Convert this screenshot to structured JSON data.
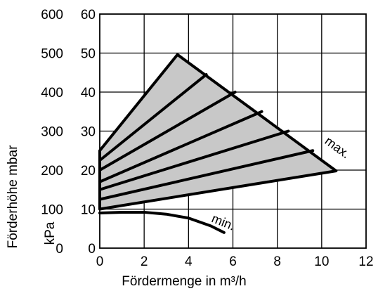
{
  "chart_data": {
    "type": "line",
    "xlabel": "Fördermenge in m³/h",
    "ylabel_outer": "Förderhöhe mbar",
    "ylabel_inner": "kPa",
    "xlim": [
      0,
      12
    ],
    "ylim_kpa": [
      0,
      60
    ],
    "ylim_mbar": [
      0,
      600
    ],
    "x_ticks": [
      "0",
      "2",
      "4",
      "6",
      "8",
      "10",
      "12"
    ],
    "y_ticks_mbar": [
      "0",
      "100",
      "200",
      "300",
      "400",
      "500",
      "600"
    ],
    "y_ticks_kpa": [
      "0",
      "10",
      "20",
      "30",
      "40",
      "50",
      "60"
    ],
    "grid": true,
    "region": {
      "name": "",
      "x": [
        0,
        3.5,
        10.65,
        0
      ],
      "y": [
        25,
        49.6,
        19.8,
        10
      ]
    },
    "series": [
      {
        "name": "",
        "x": [
          0,
          4.8
        ],
        "y": [
          22.5,
          44.5
        ]
      },
      {
        "name": "",
        "x": [
          0,
          6.1
        ],
        "y": [
          20,
          40
        ]
      },
      {
        "name": "",
        "x": [
          0,
          7.3
        ],
        "y": [
          17,
          35
        ]
      },
      {
        "name": "",
        "x": [
          0,
          8.5
        ],
        "y": [
          15,
          30
        ]
      },
      {
        "name": "",
        "x": [
          0,
          9.6
        ],
        "y": [
          12.5,
          25
        ]
      },
      {
        "name": "",
        "x": [
          0,
          1,
          2,
          3,
          4,
          5,
          5.6
        ],
        "y": [
          9,
          9.2,
          9.2,
          8.7,
          7.7,
          5.7,
          4
        ]
      }
    ],
    "annotations": [
      {
        "text": "max.",
        "x": 10.1,
        "y": 27
      },
      {
        "text": "min.",
        "x": 5.0,
        "y": 6.8
      }
    ]
  }
}
